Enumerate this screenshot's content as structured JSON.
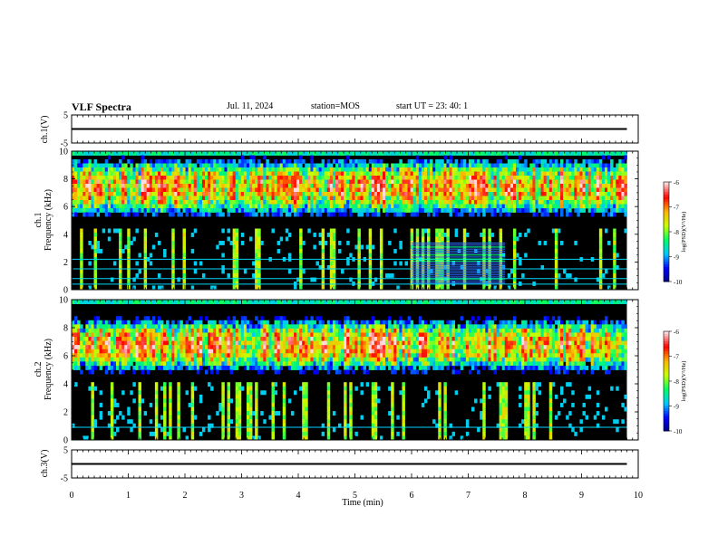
{
  "header": {
    "title": "VLF Spectra",
    "date": "Jul. 11, 2024",
    "station": "station=MOS",
    "start": "start UT = 23: 40: 1"
  },
  "chart_data": [
    {
      "type": "line",
      "panel": "ch1-waveform",
      "ylabel": "ch.1(V)",
      "ylim": [
        -5,
        5
      ],
      "ytick_labels": [
        "5",
        "-5"
      ],
      "x": [
        0,
        9.8
      ],
      "values": [
        0,
        0
      ]
    },
    {
      "type": "heatmap",
      "panel": "ch1-spectrogram",
      "ylabel": "ch.1 Frequency (kHz)",
      "ylim": [
        0,
        10
      ],
      "ytick_labels": [
        "0",
        "2",
        "4",
        "6",
        "8",
        "10"
      ],
      "xlim": [
        0,
        9.8
      ],
      "notes": {
        "strong_band_khz": [
          5.5,
          9.3
        ],
        "narrowband_lines_khz": [
          0.4,
          0.8,
          1.5,
          2.2
        ],
        "horizontal_stripe_block": {
          "t_min": [
            6.0,
            7.65
          ],
          "f_khz": [
            0.4,
            3.4
          ]
        }
      },
      "colorbar": {
        "label": "log(PSD)(V²/Hz)",
        "ticks": [
          "-6",
          "-7",
          "-8",
          "-9",
          "-10"
        ],
        "range": [
          -10,
          -6
        ]
      }
    },
    {
      "type": "heatmap",
      "panel": "ch2-spectrogram",
      "ylabel": "ch.2 Frequency (kHz)",
      "ylim": [
        0,
        10
      ],
      "ytick_labels": [
        "0",
        "2",
        "4",
        "6",
        "8",
        "10"
      ],
      "xlim": [
        0,
        9.8
      ],
      "notes": {
        "strong_band_khz": [
          5.0,
          8.5
        ],
        "narrowband_lines_khz": [
          0.9
        ]
      },
      "colorbar": {
        "label": "log(PSD)(V²/Hz)",
        "ticks": [
          "-6",
          "-7",
          "-8",
          "-9",
          "-10"
        ],
        "range": [
          -10,
          -6
        ]
      }
    },
    {
      "type": "line",
      "panel": "ch3-waveform",
      "ylabel": "ch.3(V)",
      "ylim": [
        -5,
        5
      ],
      "ytick_labels": [
        "5",
        "-5"
      ],
      "x": [
        0,
        9.8
      ],
      "values": [
        0,
        0
      ]
    }
  ],
  "xaxis": {
    "label": "Time (min)",
    "range": [
      0,
      10
    ],
    "ticks": [
      "0",
      "1",
      "2",
      "3",
      "4",
      "5",
      "6",
      "7",
      "8",
      "9",
      "10"
    ]
  },
  "colors": {
    "background_dark": "#000000",
    "cmap": [
      "#00007a",
      "#0000ff",
      "#00c8ff",
      "#00ff64",
      "#c8ff00",
      "#ffb400",
      "#ff0000",
      "#ffdcdc"
    ]
  }
}
